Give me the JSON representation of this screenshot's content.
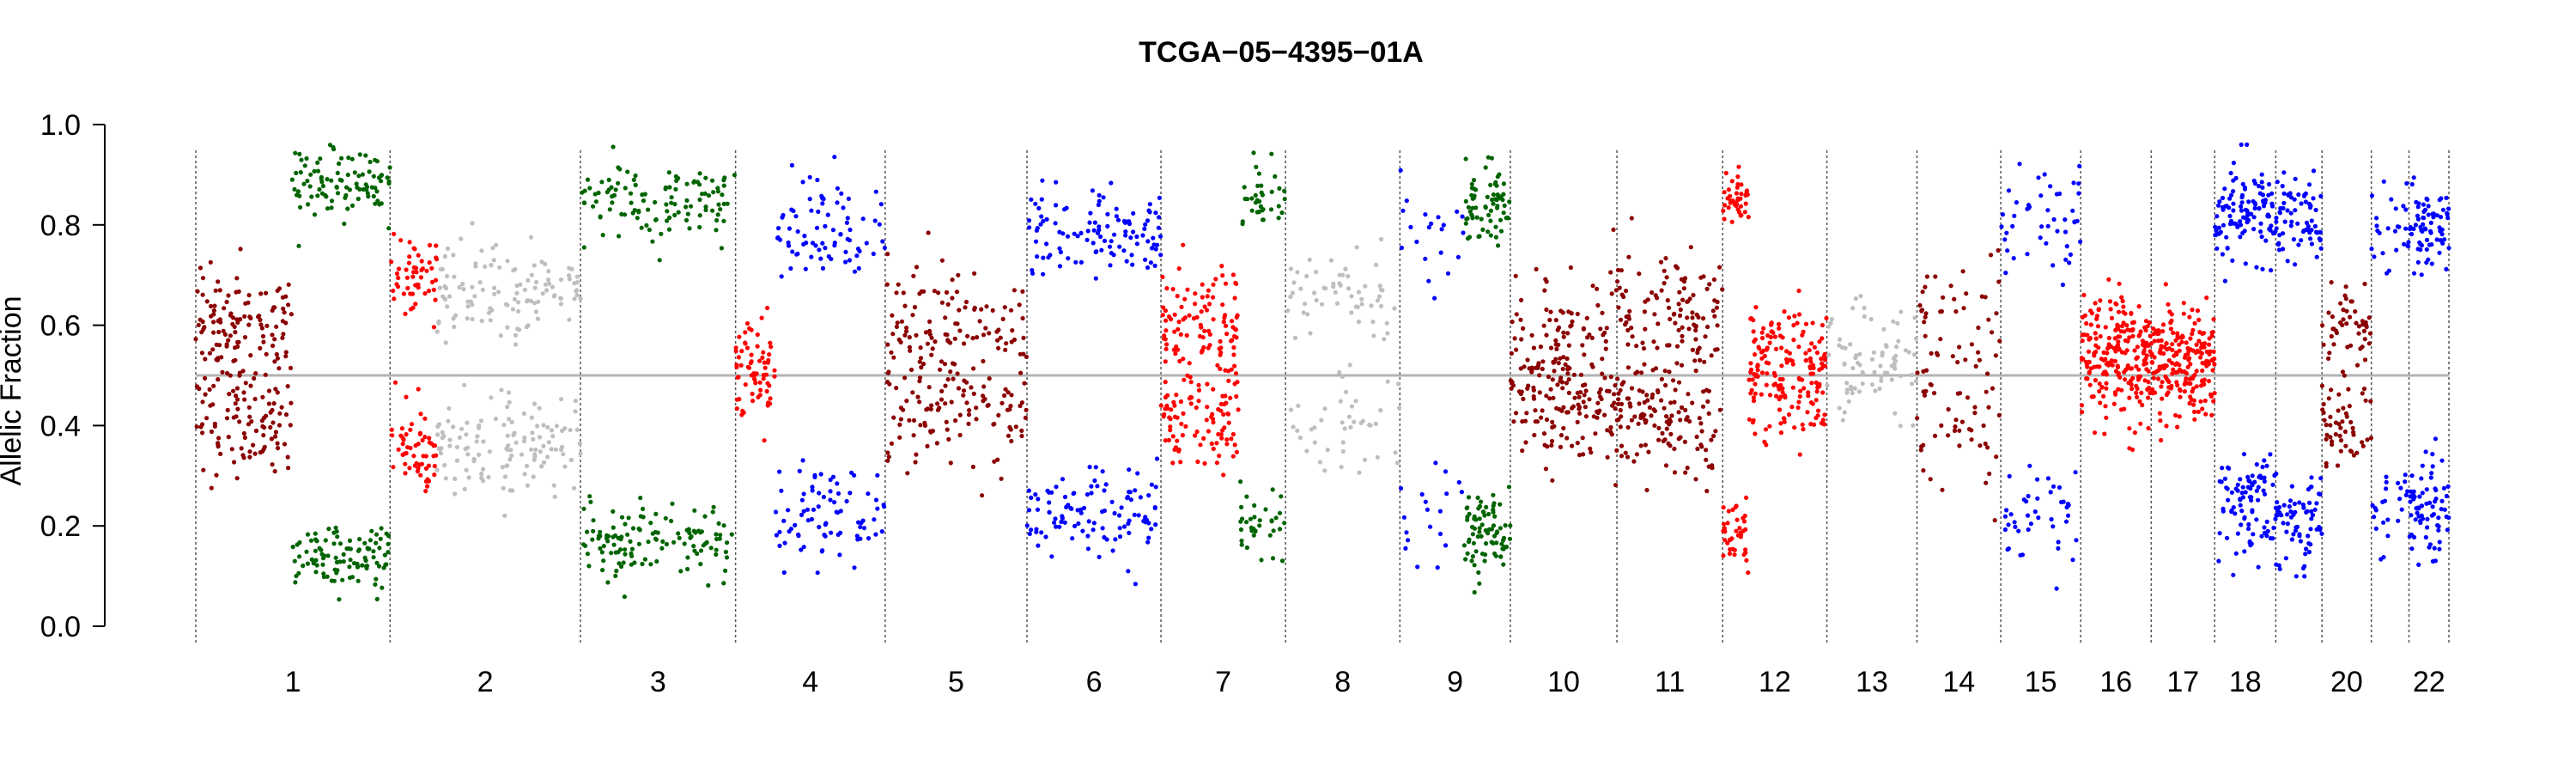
{
  "chart_data": {
    "type": "scatter",
    "title": "TCGA−05−4395−01A",
    "ylabel": "Allelic Fraction",
    "xlabel": "",
    "ylim": [
      0,
      1
    ],
    "yticks": [
      "0.0",
      "0.2",
      "0.4",
      "0.6",
      "0.8",
      "1.0"
    ],
    "reference_line": {
      "y": 0.5,
      "color": "#b3b3b3"
    },
    "grid": false,
    "legend": "none",
    "chromosome_labels": [
      "1",
      "2",
      "3",
      "4",
      "5",
      "6",
      "7",
      "8",
      "9",
      "10",
      "11",
      "12",
      "13",
      "14",
      "15",
      "16",
      "17",
      "18",
      "20",
      "22"
    ],
    "chromosome_boundaries": [
      1,
      249,
      492,
      690,
      881,
      1062,
      1233,
      1392,
      1538,
      1679,
      1815,
      1950,
      2083,
      2198,
      2305,
      2407,
      2497,
      2578,
      2656,
      2715,
      2778,
      2826,
      2877
    ],
    "x_range": [
      1,
      2877
    ],
    "colors": {
      "darkred": "#8b0000",
      "red": "#ff0000",
      "green": "#006400",
      "blue": "#0000ff",
      "gray": "#bebebe"
    },
    "segments": [
      {
        "chrom": "1",
        "x": [
          1,
          124
        ],
        "color": "darkred",
        "af": [
          0.41,
          0.6
        ],
        "spread": 0.06,
        "n": 220
      },
      {
        "chrom": "1",
        "x": [
          124,
          249
        ],
        "color": "green",
        "af": [
          0.14,
          0.89
        ],
        "spread": 0.035,
        "n": 200
      },
      {
        "chrom": "2",
        "x": [
          249,
          309
        ],
        "color": "red",
        "af": [
          0.35,
          0.7
        ],
        "spread": 0.04,
        "n": 110
      },
      {
        "chrom": "2",
        "x": [
          309,
          492
        ],
        "color": "gray",
        "af": [
          0.36,
          0.67
        ],
        "spread": 0.05,
        "n": 240
      },
      {
        "chrom": "3",
        "x": [
          492,
          690
        ],
        "color": "green",
        "af": [
          0.17,
          0.85
        ],
        "spread": 0.04,
        "n": 240
      },
      {
        "chrom": "4",
        "x": [
          690,
          740
        ],
        "color": "red",
        "af": [
          0.5,
          0.53
        ],
        "spread": 0.05,
        "n": 70
      },
      {
        "chrom": "4",
        "x": [
          740,
          881
        ],
        "color": "blue",
        "af": [
          0.22,
          0.79
        ],
        "spread": 0.05,
        "n": 160
      },
      {
        "chrom": "5",
        "x": [
          881,
          1062
        ],
        "color": "darkred",
        "af": [
          0.42,
          0.6
        ],
        "spread": 0.06,
        "n": 220
      },
      {
        "chrom": "6",
        "x": [
          1062,
          1233
        ],
        "color": "blue",
        "af": [
          0.23,
          0.79
        ],
        "spread": 0.045,
        "n": 220
      },
      {
        "chrom": "7",
        "x": [
          1233,
          1332
        ],
        "color": "red",
        "af": [
          0.43,
          0.6
        ],
        "spread": 0.06,
        "n": 200
      },
      {
        "chrom": "7",
        "x": [
          1332,
          1392
        ],
        "color": "green",
        "af": [
          0.2,
          0.85
        ],
        "spread": 0.04,
        "n": 70
      },
      {
        "chrom": "8",
        "x": [
          1392,
          1538
        ],
        "color": "gray",
        "af": [
          0.4,
          0.65
        ],
        "spread": 0.05,
        "n": 100
      },
      {
        "chrom": "9",
        "x": [
          1538,
          1620
        ],
        "color": "blue",
        "af": [
          0.22,
          0.8
        ],
        "spread": 0.06,
        "n": 40
      },
      {
        "chrom": "9",
        "x": [
          1620,
          1679
        ],
        "color": "green",
        "af": [
          0.19,
          0.84
        ],
        "spread": 0.04,
        "n": 150
      },
      {
        "chrom": "10",
        "x": [
          1679,
          1815
        ],
        "color": "darkred",
        "af": [
          0.44,
          0.58
        ],
        "spread": 0.06,
        "n": 220
      },
      {
        "chrom": "11",
        "x": [
          1815,
          1950
        ],
        "color": "darkred",
        "af": [
          0.42,
          0.62
        ],
        "spread": 0.06,
        "n": 240
      },
      {
        "chrom": "12",
        "x": [
          1950,
          1983
        ],
        "color": "red",
        "af": [
          0.18,
          0.85
        ],
        "spread": 0.03,
        "n": 80
      },
      {
        "chrom": "12",
        "x": [
          1983,
          2083
        ],
        "color": "red",
        "af": [
          0.46,
          0.56
        ],
        "spread": 0.05,
        "n": 180
      },
      {
        "chrom": "13",
        "x": [
          2083,
          2198
        ],
        "color": "gray",
        "af": [
          0.5,
          0.56
        ],
        "spread": 0.05,
        "n": 80
      },
      {
        "chrom": "14",
        "x": [
          2198,
          2305
        ],
        "color": "darkred",
        "af": [
          0.4,
          0.6
        ],
        "spread": 0.07,
        "n": 90
      },
      {
        "chrom": "15",
        "x": [
          2305,
          2407
        ],
        "color": "blue",
        "af": [
          0.22,
          0.8
        ],
        "spread": 0.05,
        "n": 90
      },
      {
        "chrom": "16",
        "x": [
          2407,
          2497
        ],
        "color": "red",
        "af": [
          0.5,
          0.57
        ],
        "spread": 0.06,
        "n": 220
      },
      {
        "chrom": "17",
        "x": [
          2497,
          2578
        ],
        "color": "red",
        "af": [
          0.5,
          0.55
        ],
        "spread": 0.05,
        "n": 200
      },
      {
        "chrom": "18",
        "x": [
          2578,
          2656
        ],
        "color": "blue",
        "af": [
          0.24,
          0.82
        ],
        "spread": 0.05,
        "n": 200
      },
      {
        "chrom": "19",
        "x": [
          2656,
          2715
        ],
        "color": "blue",
        "af": [
          0.22,
          0.82
        ],
        "spread": 0.05,
        "n": 140
      },
      {
        "chrom": "20",
        "x": [
          2715,
          2778
        ],
        "color": "darkred",
        "af": [
          0.4,
          0.6
        ],
        "spread": 0.05,
        "n": 100
      },
      {
        "chrom": "21",
        "x": [
          2778,
          2826
        ],
        "color": "blue",
        "af": [
          0.25,
          0.8
        ],
        "spread": 0.05,
        "n": 50
      },
      {
        "chrom": "22",
        "x": [
          2826,
          2877
        ],
        "color": "blue",
        "af": [
          0.23,
          0.8
        ],
        "spread": 0.05,
        "n": 140
      }
    ]
  }
}
